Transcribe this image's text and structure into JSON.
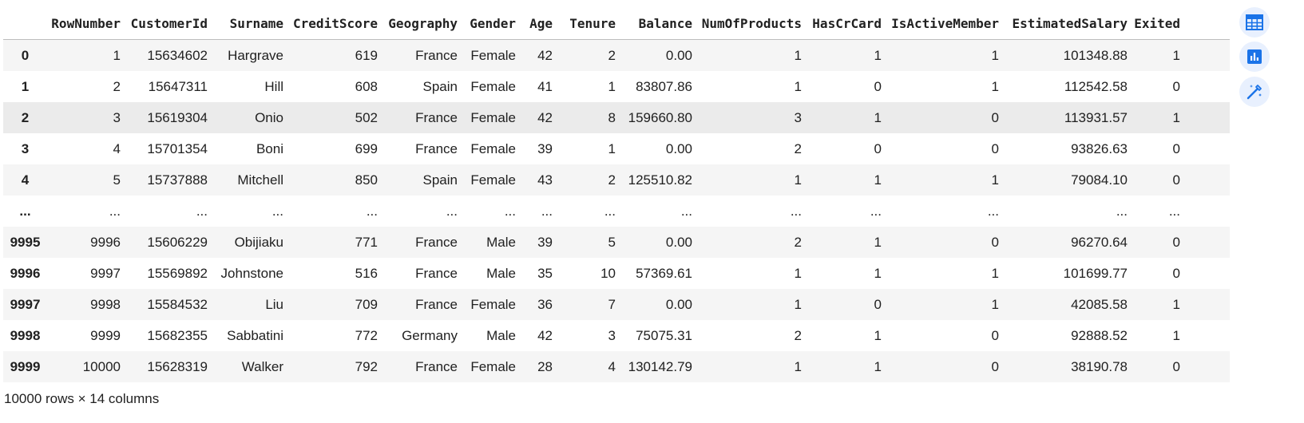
{
  "dataframe": {
    "columns": [
      "RowNumber",
      "CustomerId",
      "Surname",
      "CreditScore",
      "Geography",
      "Gender",
      "Age",
      "Tenure",
      "Balance",
      "NumOfProducts",
      "HasCrCard",
      "IsActiveMember",
      "EstimatedSalary",
      "Exited"
    ],
    "rows": [
      {
        "index": "0",
        "cells": [
          "1",
          "15634602",
          "Hargrave",
          "619",
          "France",
          "Female",
          "42",
          "2",
          "0.00",
          "1",
          "1",
          "1",
          "101348.88",
          "1"
        ]
      },
      {
        "index": "1",
        "cells": [
          "2",
          "15647311",
          "Hill",
          "608",
          "Spain",
          "Female",
          "41",
          "1",
          "83807.86",
          "1",
          "0",
          "1",
          "112542.58",
          "0"
        ]
      },
      {
        "index": "2",
        "cells": [
          "3",
          "15619304",
          "Onio",
          "502",
          "France",
          "Female",
          "42",
          "8",
          "159660.80",
          "3",
          "1",
          "0",
          "113931.57",
          "1"
        ]
      },
      {
        "index": "3",
        "cells": [
          "4",
          "15701354",
          "Boni",
          "699",
          "France",
          "Female",
          "39",
          "1",
          "0.00",
          "2",
          "0",
          "0",
          "93826.63",
          "0"
        ]
      },
      {
        "index": "4",
        "cells": [
          "5",
          "15737888",
          "Mitchell",
          "850",
          "Spain",
          "Female",
          "43",
          "2",
          "125510.82",
          "1",
          "1",
          "1",
          "79084.10",
          "0"
        ]
      },
      {
        "index": "...",
        "cells": [
          "...",
          "...",
          "...",
          "...",
          "...",
          "...",
          "...",
          "...",
          "...",
          "...",
          "...",
          "...",
          "...",
          "..."
        ]
      },
      {
        "index": "9995",
        "cells": [
          "9996",
          "15606229",
          "Obijiaku",
          "771",
          "France",
          "Male",
          "39",
          "5",
          "0.00",
          "2",
          "1",
          "0",
          "96270.64",
          "0"
        ]
      },
      {
        "index": "9996",
        "cells": [
          "9997",
          "15569892",
          "Johnstone",
          "516",
          "France",
          "Male",
          "35",
          "10",
          "57369.61",
          "1",
          "1",
          "1",
          "101699.77",
          "0"
        ]
      },
      {
        "index": "9997",
        "cells": [
          "9998",
          "15584532",
          "Liu",
          "709",
          "France",
          "Female",
          "36",
          "7",
          "0.00",
          "1",
          "0",
          "1",
          "42085.58",
          "1"
        ]
      },
      {
        "index": "9998",
        "cells": [
          "9999",
          "15682355",
          "Sabbatini",
          "772",
          "Germany",
          "Male",
          "42",
          "3",
          "75075.31",
          "2",
          "1",
          "0",
          "92888.52",
          "1"
        ]
      },
      {
        "index": "9999",
        "cells": [
          "10000",
          "15628319",
          "Walker",
          "792",
          "France",
          "Female",
          "28",
          "4",
          "130142.79",
          "1",
          "1",
          "0",
          "38190.78",
          "0"
        ]
      }
    ],
    "shape_text": "10000 rows × 14 columns",
    "hovered_row": 2
  },
  "toolbar": {
    "buttons": [
      {
        "name": "table-view-button",
        "icon": "table-icon"
      },
      {
        "name": "chart-suggestions-button",
        "icon": "bar-chart-icon"
      },
      {
        "name": "magic-edit-button",
        "icon": "magic-wand-icon"
      }
    ],
    "accent_color": "#1a73e8",
    "button_bg": "#e8f0fe"
  }
}
